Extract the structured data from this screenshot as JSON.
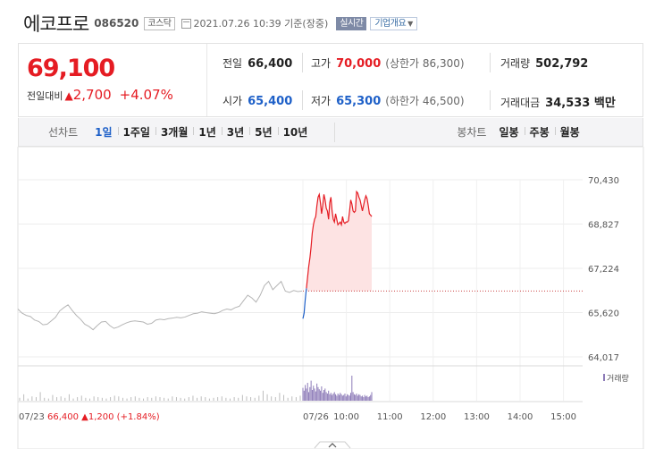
{
  "header": {
    "stock_name": "에코프로",
    "stock_code": "086520",
    "market_badge": "코스닥",
    "timestamp": "2021.07.26 10:39 기준(장중)",
    "realtime_label": "실시간",
    "company_overview_label": "기업개요"
  },
  "price": {
    "current": "69,100",
    "change_label": "전일대비",
    "change_symbol": "▲",
    "change_value": "2,700",
    "change_percent": "+4.07%"
  },
  "stats": {
    "prev_close_label": "전일",
    "prev_close": "66,400",
    "high_label": "고가",
    "high": "70,000",
    "upper_limit": "(상한가 86,300)",
    "volume_label": "거래량",
    "volume": "502,792",
    "open_label": "시가",
    "open": "65,400",
    "low_label": "저가",
    "low": "65,300",
    "lower_limit": "(하한가 46,500)",
    "amount_label": "거래대금",
    "amount": "34,533 백만"
  },
  "periods": {
    "line_label": "선차트",
    "line_items": [
      "1일",
      "1주일",
      "3개월",
      "1년",
      "3년",
      "5년",
      "10년"
    ],
    "selected": "1일",
    "candle_label": "봉차트",
    "candle_items": [
      "일봉",
      "주봉",
      "월봉"
    ]
  },
  "colors": {
    "up": "#e51c23",
    "down": "#1e60c8",
    "line": "#b5b5b5",
    "fill": "#fde3e3"
  },
  "chart_data": {
    "type": "line",
    "y_ticks": [
      "70,430",
      "68,827",
      "67,224",
      "65,620",
      "64,017"
    ],
    "ylim": [
      64017,
      70430
    ],
    "x_ticks": [
      "10:00",
      "11:00",
      "12:00",
      "13:00",
      "14:00",
      "15:00"
    ],
    "volume_legend": "거래량",
    "prev_day_label": "07/23",
    "prev_day_summary": "66,400 ▲1,200 (+1.84%)",
    "today_label": "07/26",
    "baseline": 66400,
    "prev_day_series": [
      65750,
      65600,
      65520,
      65480,
      65350,
      65300,
      65180,
      65200,
      65320,
      65450,
      65680,
      65800,
      65900,
      65700,
      65520,
      65380,
      65200,
      65120,
      65000,
      65150,
      65280,
      65300,
      65150,
      65050,
      65100,
      65180,
      65250,
      65300,
      65320,
      65300,
      65280,
      65200,
      65230,
      65350,
      65380,
      65360,
      65400,
      65420,
      65450,
      65430,
      65460,
      65520,
      65580,
      65600,
      65650,
      65620,
      65600,
      65580,
      65620,
      65700,
      65750,
      65720,
      65800,
      65850,
      66050,
      66250,
      66150,
      66000,
      66250,
      66600,
      66750,
      66450,
      66600,
      66750,
      66400,
      66350,
      66420,
      66380,
      66400
    ],
    "today_series": [
      65400,
      65600,
      66100,
      66500,
      66900,
      67300,
      67600,
      68000,
      68500,
      68800,
      69000,
      69100,
      69500,
      69800,
      69900,
      69600,
      69200,
      69500,
      69900,
      69700,
      69400,
      69300,
      69000,
      69600,
      69800,
      69300,
      69000,
      68900,
      69200,
      69000,
      68800,
      68850,
      68900,
      68800,
      69100,
      68900,
      68850,
      68900,
      68900,
      68950,
      69300,
      69700,
      69550,
      69300,
      69250,
      69300,
      70000,
      69950,
      69800,
      69700,
      69500,
      69300,
      69500,
      69700,
      69850,
      69750,
      69500,
      69200,
      69150,
      69100
    ],
    "prev_day_volume": [
      4,
      9,
      3,
      6,
      5,
      12,
      4,
      3,
      8,
      5,
      6,
      4,
      9,
      3,
      5,
      7,
      4,
      3,
      6,
      5,
      4,
      3,
      5,
      7,
      6,
      4,
      3,
      5,
      6,
      4,
      3,
      5,
      4,
      6,
      5,
      4,
      3,
      6,
      5,
      4,
      3,
      5,
      7,
      4,
      6,
      5,
      3,
      4,
      5,
      6,
      4,
      3,
      5,
      4,
      8,
      6,
      5,
      4,
      7,
      14,
      9,
      6,
      5,
      11,
      8,
      4,
      6,
      5,
      7
    ],
    "today_volume": [
      18,
      14,
      22,
      17,
      25,
      12,
      19,
      28,
      15,
      21,
      17,
      13,
      24,
      19,
      16,
      14,
      20,
      11,
      15,
      17,
      12,
      10,
      14,
      9,
      11,
      8,
      10,
      12,
      9,
      7,
      10,
      8,
      11,
      9,
      7,
      8,
      10,
      6,
      9,
      8,
      7,
      11,
      35,
      12,
      9,
      8,
      10,
      7,
      9,
      8,
      6,
      7,
      5,
      8,
      6,
      7,
      5,
      6,
      8,
      12
    ]
  }
}
